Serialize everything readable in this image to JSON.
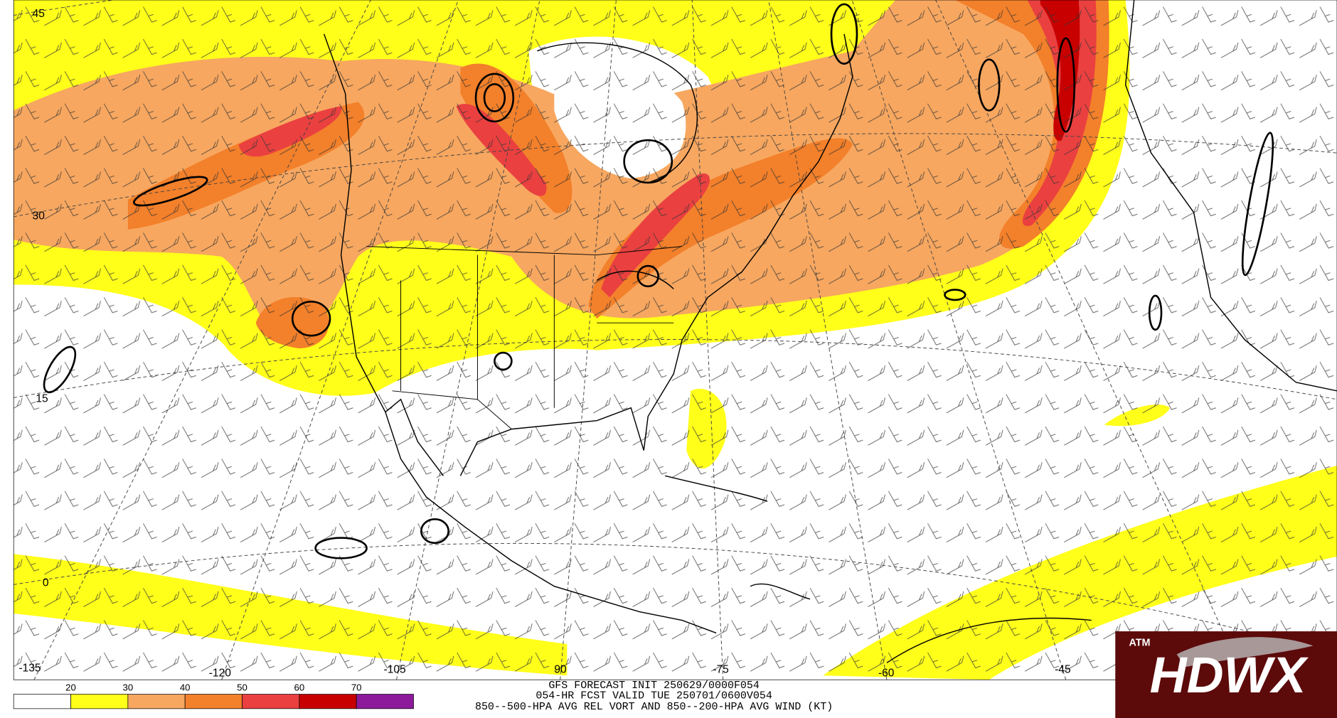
{
  "map": {
    "lat_labels": [
      "45",
      "30",
      "15",
      "0"
    ],
    "lon_labels": [
      "-135",
      "-120",
      "-105",
      "90",
      "-75",
      "-60",
      "-45"
    ]
  },
  "header": {
    "line1": "GFS FORECAST INIT 250629/0000F054",
    "line2": "054-HR FCST VALID TUE 250701/0600V054",
    "line3": "850--500-HPA AVG REL VORT AND 850--200-HPA AVG WIND (KT)"
  },
  "colorbar": {
    "levels": [
      20,
      30,
      40,
      50,
      60,
      70
    ],
    "colors": [
      "#ffffff",
      "#ffff1a",
      "#f7a760",
      "#f3802a",
      "#ea4040",
      "#c80000",
      "#8c1a9a"
    ]
  },
  "logo": {
    "text": "HDWX",
    "seal": "ATM"
  }
}
